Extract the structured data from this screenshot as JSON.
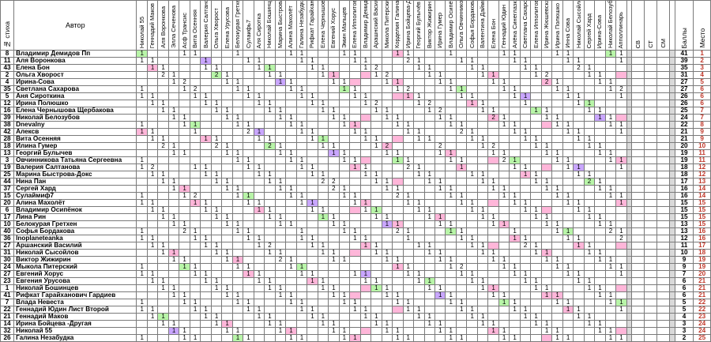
{
  "sheet": {
    "headers": {
      "number": "№ стиха",
      "author": "Автор",
      "score": "Баллы",
      "place": "Место",
      "voter_columns": [
        "Николай 55",
        "Геннадий Маков",
        "Аля Воронкова",
        "Элла Сеченова",
        "Асф Трансис",
        "Вита Осенняя",
        "Валерия Салтанова",
        "Ольга Хворост",
        "Елена Урусова",
        "Белокурая Гретхен",
        "Сулаифь7",
        "Аля Сиротка",
        "Николай Бошинцев",
        "Марина Быстрова-Д",
        "Алина Махолёт",
        "Галина Незабудка",
        "Рифкат Гарайханович",
        "Елена Чернышова Ш",
        "Евгений Хорус",
        "Эмин Мальцев",
        "Елена Ипполитова",
        "Владимир Демидов",
        "Арашнский Василий",
        "Микола Питерский",
        "Корделия Галина",
        "Ирина Бойцева-Д",
        "Георгий Булычёв",
        "Виктор Жижирин",
        "Ирина Гумер",
        "Владимир Осипёнок",
        "Ольга Овчинникова",
        "Софья Бордакова",
        "Валентина Даймс",
        "Елена Бон",
        "Геннадий Юдин",
        "Алёна Синеглазка",
        "Светлана Сахарова",
        "Елена Ипполитова 2",
        "Ирина Жюшевская",
        "Ирина Полюшко",
        "Инна Сова",
        "Николай Сысойлов",
        "Сергей Хард",
        "Ирина-Сова",
        "Николай Белозубов",
        "Апполлинарь"
      ],
      "summary_columns": [
        "СВ",
        "СТ",
        "СМ"
      ]
    },
    "rows": [
      {
        "n": "8",
        "author": "Владимир Демидов Пп",
        "score": "41",
        "place": "1"
      },
      {
        "n": "11",
        "author": "Аля Воронкова",
        "score": "39",
        "place": "2"
      },
      {
        "n": "43",
        "author": "Елена Бон",
        "score": "35",
        "place": "3"
      },
      {
        "n": "2",
        "author": "Ольга Хворост",
        "score": "31",
        "place": "4"
      },
      {
        "n": "4",
        "author": "Ирина-Сова",
        "score": "27",
        "place": "5"
      },
      {
        "n": "35",
        "author": "Светлана Сахарова",
        "score": "27",
        "place": "6"
      },
      {
        "n": "5",
        "author": "Аня Сироткина",
        "score": "26",
        "place": "6"
      },
      {
        "n": "12",
        "author": "Ирина Полюшко",
        "score": "26",
        "place": "6"
      },
      {
        "n": "16",
        "author": "Елена Чернышова Щербакова",
        "score": "25",
        "place": "7"
      },
      {
        "n": "39",
        "author": "Николай Белозубов",
        "score": "24",
        "place": "7"
      },
      {
        "n": "38",
        "author": "Dnevalny",
        "score": "22",
        "place": "8"
      },
      {
        "n": "42",
        "author": "Алексв",
        "score": "21",
        "place": "9"
      },
      {
        "n": "28",
        "author": "Вита Осенняя",
        "score": "21",
        "place": "9"
      },
      {
        "n": "18",
        "author": "Илина Гумер",
        "score": "20",
        "place": "10"
      },
      {
        "n": "13",
        "author": "Георгий Булычев",
        "score": "19",
        "place": "11"
      },
      {
        "n": "3",
        "author": "Овчинникова Татьяна Сергеевна",
        "score": "19",
        "place": "11"
      },
      {
        "n": "19",
        "author": "Валерия Салтанова",
        "score": "18",
        "place": "12"
      },
      {
        "n": "25",
        "author": "Марина Быстрова-Докс",
        "score": "18",
        "place": "12"
      },
      {
        "n": "44",
        "author": "Нина Пан",
        "score": "17",
        "place": "13"
      },
      {
        "n": "37",
        "author": "Сергей Хард",
        "score": "16",
        "place": "14"
      },
      {
        "n": "15",
        "author": "Сулаймиф7",
        "score": "16",
        "place": "14"
      },
      {
        "n": "20",
        "author": "Алина Махолёт",
        "score": "15",
        "place": "15"
      },
      {
        "n": "6",
        "author": "Владимир Осипёнок",
        "score": "15",
        "place": "15"
      },
      {
        "n": "17",
        "author": "Лина Рин",
        "score": "15",
        "place": "15"
      },
      {
        "n": "10",
        "author": "Белокурая Гретхен",
        "score": "13",
        "place": "15"
      },
      {
        "n": "40",
        "author": "Софья Бордакова",
        "score": "13",
        "place": "16"
      },
      {
        "n": "36",
        "author": "Inoplaneteanka",
        "score": "12",
        "place": "16"
      },
      {
        "n": "27",
        "author": "Аршанский Василий",
        "score": "11",
        "place": "17"
      },
      {
        "n": "31",
        "author": "Николай Сысойлов",
        "score": "10",
        "place": "18"
      },
      {
        "n": "30",
        "author": "Виктор Жижирин",
        "score": "9",
        "place": "19"
      },
      {
        "n": "24",
        "author": "Мыкола Питерский",
        "score": "9",
        "place": "19"
      },
      {
        "n": "27",
        "author": "Евгений Хорус",
        "score": "7",
        "place": "20"
      },
      {
        "n": "23",
        "author": "Евгения Урусова",
        "score": "6",
        "place": "21"
      },
      {
        "n": "1",
        "author": "Николай Бошинцев",
        "score": "6",
        "place": "21"
      },
      {
        "n": "41",
        "author": "Рифкат Гарайханович Гардиев",
        "score": "6",
        "place": "21"
      },
      {
        "n": "7",
        "author": "Влада Невеста",
        "score": "5",
        "place": "22"
      },
      {
        "n": "22",
        "author": "Геннадий Юдин Лист Второй",
        "score": "5",
        "place": "22"
      },
      {
        "n": "21",
        "author": "Геннадий Маков",
        "score": "4",
        "place": "23"
      },
      {
        "n": "14",
        "author": "Ирина Бойцева -Другая",
        "score": "3",
        "place": "24"
      },
      {
        "n": "32",
        "author": "Николай 55",
        "score": "3",
        "place": "24"
      },
      {
        "n": "26",
        "author": "Галина Незабудка",
        "score": "2",
        "place": "25"
      }
    ],
    "cells": [
      "    1 12 1  11  1      1  1     1  1 1 22 2     1  1   1  1 1    11   1  1",
      "    1  1 1 1        2 1 11 1   1 1       1 1   1 1   1 1    1 1 1   1  1 1",
      "  1 1 1 1 1 1   1    1   1  1      1 1    1  1 1   1   1  2 1  1  1 1 1 1 2 3",
      "    1 1 2 1 1       2 1 1  1 1  2   1      1  1     1  1 1 2 1 1  1  1 1 1",
      "      2 1       1 2 1     1 1      1 2 2 2  1   1 1      1   1 1 1  1 1 1",
      "  1 1 1   1         1   1  2  1 1      1 2 1   1 1   1   1  1  1  1 1",
      "1     1 1 1 1        1 1  1 1  1  1   1 1  1 1 1  1  1   1 1 1 1  1",
      "1 1 1       1     1 1 2 1   1 1   1   2      1  1 1 1 1   1 1 1  1 4 26",
      "  2 1       1         1 1 1    1 1    1 1   1   1 1   1 1 1   1 1",
      "  1 1 1 1   1       1 2 1 1     1 1   1  1   1     1   1 1 1",
      "1   1   1             1 1 1   1   1       1  1 1   1 1 1  1 1",
      "  1   1     1   2 1 2 1     1   1 1    1    1  1   1   1   1 1 5",
      "1 1 1 1     1   1   1   1   1 1    1   1 1  1   1 1 1    1 1",
      "    1   1 1 1 2   1   1 1   1 1   1 1   1   1   1  2 1 1 1   6 2",
      "  1   1     1     1 1   1 1  1 1   1 1 2 1 1    1 1 1 1 1 1",
      "  1   1 1 1 1 2     1 1  1 1    1 1   1   1 1  1  1  1 1 4 4 11",
      "  1   1 1 1 1 1 1 1   1 1 1   2  1    1 1 1 1 2  1 1   1 1 1 7",
      "    1   1 1 1 1   1   1 1     1  1   1  1 1 1  1 1 1 1 1 1 1 1",
      "  2 1 1     1   1   1    2   1    1 1 1  1   1 1   1 1 1 2",
      "  1 1 1 1   1     1     1 1    1  1   1 1 1  1   1  1 1 1 2",
      "    1 1   1     1   1 1 2 1 1    1 1 1  1    1 1 1   1 1 1",
      "  1 1 1 1   1   1 1 1 1 1   1    1     1 1   1  1 1 1 1 1",
      "  1 1   1 1 1   1   1    1    1  1   1 1  1 1  1 1 1 1 1",
      "  1 1 1     1 1   1 1   1 1 1  1 1 1   1   1   1 1 1 1",
      "    1 1 1 1   1   1 1  1  1 1     1 1 1  1 1  1 1",
      "    1 1 1   1 1    1  1 1  1  2  1   1 1 1 1   1 1 1 8 3",
      "  1   1   1 1 1  1   1 1  1 1 1  1    1  1 1 1 7 2",
      "  1   1     1     2  1   1 1   1  1 1 1    1",
      "  1 1 1 1   1 1   1   1  1 1  1 1 1 1   1 1",
      "2     1 1     1   1   1  1 1 1 1  1 1   1 1",
      "1 1 1     1 1 1   1 1 1 2 1    1  1 1  1 23 9",
      "1 1 1 1         1 1  1 1    1 1 1  1   1",
      "1 1 1       1 1 1   1    1 1  1   1 1  1",
      "  1 1       1   1     1    1  1   1 1 1",
      "1 1     1   1 1 1   1 1  1 1   1  1  1",
      "    1 1     1 1 1       1 1    1  1  1",
      "1   1   1     1 1   1 1  1  1   1 1 1",
      "  1     1 1 1         1   1  1 1  1",
      "    1   1     1 1   1   1 1   1   1",
      "1   1     1 1   1 1     1  1  1  1",
      "      1     1 1   1   1     1  1"
    ],
    "colors": {
      "green": "#b8f5a8",
      "pink": "#ffb6d9",
      "violet": "#c9a6ff",
      "yellow": "#fff24d",
      "gray": "#d9d9d9",
      "place_red": "#c0392b"
    }
  }
}
